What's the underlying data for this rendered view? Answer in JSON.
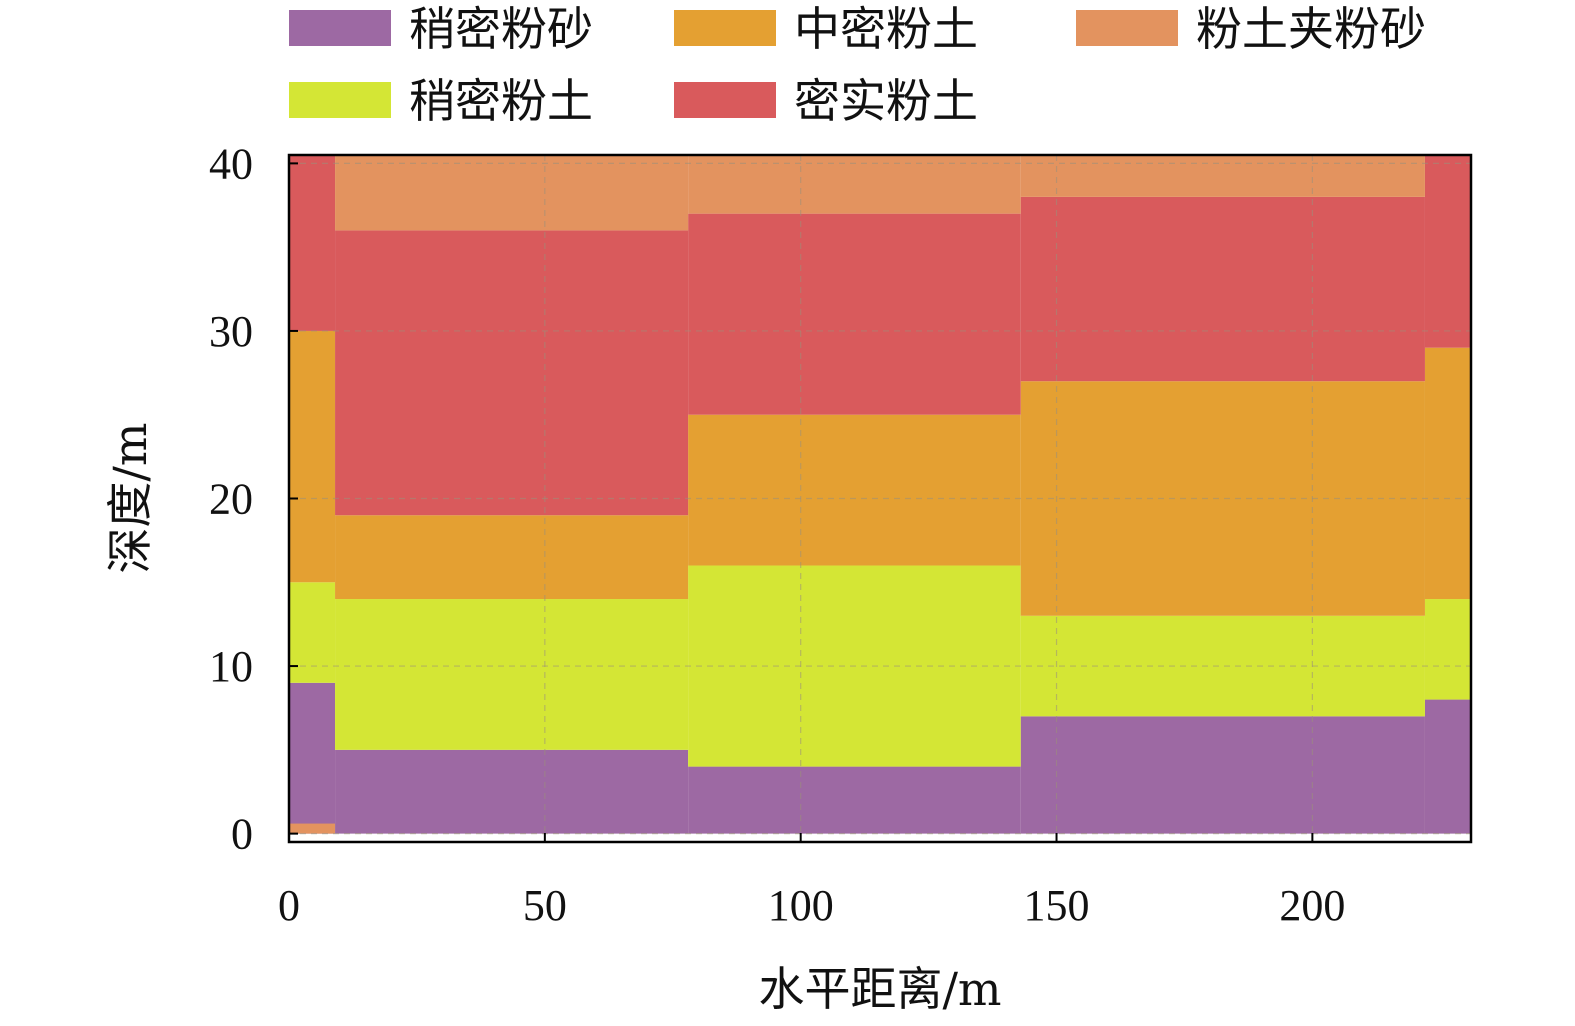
{
  "chart_data": {
    "type": "area",
    "xlabel": "水平距离/m",
    "ylabel": "深度/m",
    "xlim": [
      0,
      231
    ],
    "ylim": [
      -0.5,
      40.5
    ],
    "xticks": [
      0,
      50,
      100,
      150,
      200
    ],
    "yticks": [
      0,
      10,
      20,
      30,
      40
    ],
    "grid": true,
    "legend_position": "top",
    "legend": [
      {
        "name": "稍密粉砂",
        "color": "#9d69a3"
      },
      {
        "name": "中密粉土",
        "color": "#e4a032"
      },
      {
        "name": "粉土夹粉砂",
        "color": "#e3935f"
      },
      {
        "name": "稍密粉土",
        "color": "#d4e635"
      },
      {
        "name": "密实粉土",
        "color": "#d95a5c"
      }
    ],
    "layers": [
      {
        "name": "稍密粉砂",
        "color": "#9d69a3",
        "segments": [
          {
            "x": [
              0,
              9
            ],
            "y": [
              0,
              9
            ]
          },
          {
            "x": [
              9,
              78
            ],
            "y": [
              0,
              5
            ]
          },
          {
            "x": [
              78,
              143
            ],
            "y": [
              0,
              4
            ]
          },
          {
            "x": [
              143,
              222
            ],
            "y": [
              0,
              7
            ]
          },
          {
            "x": [
              222,
              231
            ],
            "y": [
              0,
              8
            ]
          }
        ]
      },
      {
        "name": "稍密粉土",
        "color": "#d4e635",
        "segments": [
          {
            "x": [
              0,
              9
            ],
            "y": [
              9,
              15
            ]
          },
          {
            "x": [
              9,
              78
            ],
            "y": [
              5,
              14
            ]
          },
          {
            "x": [
              78,
              143
            ],
            "y": [
              4,
              16
            ]
          },
          {
            "x": [
              143,
              222
            ],
            "y": [
              7,
              13
            ]
          },
          {
            "x": [
              222,
              231
            ],
            "y": [
              8,
              14
            ]
          }
        ]
      },
      {
        "name": "中密粉土",
        "color": "#e4a032",
        "segments": [
          {
            "x": [
              0,
              9
            ],
            "y": [
              15,
              30
            ]
          },
          {
            "x": [
              9,
              78
            ],
            "y": [
              14,
              19
            ]
          },
          {
            "x": [
              78,
              143
            ],
            "y": [
              16,
              25
            ]
          },
          {
            "x": [
              143,
              222
            ],
            "y": [
              13,
              27
            ]
          },
          {
            "x": [
              222,
              231
            ],
            "y": [
              14,
              29
            ]
          }
        ]
      },
      {
        "name": "密实粉土",
        "color": "#d95a5c",
        "segments": [
          {
            "x": [
              0,
              9
            ],
            "y": [
              30,
              40.5
            ]
          },
          {
            "x": [
              9,
              78
            ],
            "y": [
              19,
              36
            ]
          },
          {
            "x": [
              78,
              143
            ],
            "y": [
              25,
              37
            ]
          },
          {
            "x": [
              143,
              222
            ],
            "y": [
              27,
              38
            ]
          },
          {
            "x": [
              222,
              231
            ],
            "y": [
              29,
              40.5
            ]
          }
        ]
      },
      {
        "name": "粉土夹粉砂",
        "color": "#e3935f",
        "segments": [
          {
            "x": [
              0,
              9
            ],
            "y": [
              0,
              0.6
            ]
          },
          {
            "x": [
              9,
              78
            ],
            "y": [
              36,
              40.5
            ]
          },
          {
            "x": [
              78,
              143
            ],
            "y": [
              37,
              40.5
            ]
          },
          {
            "x": [
              143,
              222
            ],
            "y": [
              38,
              40.5
            ]
          }
        ]
      }
    ]
  }
}
